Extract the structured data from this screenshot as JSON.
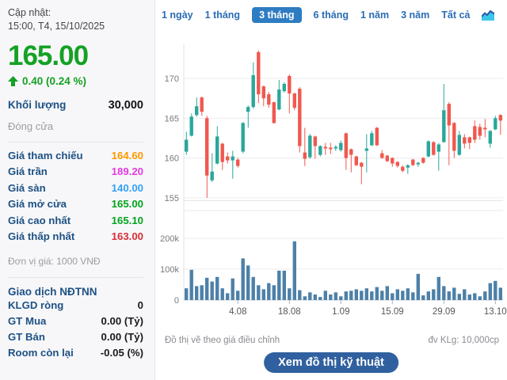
{
  "sidebar": {
    "updated_label": "Cập nhật:",
    "updated_time": "15:00, T4, 15/10/2025",
    "price": "165.00",
    "change": "0.40 (0.24 %)",
    "change_icon": "up-arrow-icon",
    "change_color": "#15a125",
    "volume_label": "Khối lượng",
    "volume_value": "30,000",
    "close_label": "Đóng cửa",
    "rows": [
      {
        "label": "Giá tham chiếu",
        "value": "164.60",
        "color": "#ff9800"
      },
      {
        "label": "Giá trần",
        "value": "189.20",
        "color": "#e43ae0"
      },
      {
        "label": "Giá sàn",
        "value": "140.00",
        "color": "#33a1f5"
      },
      {
        "label": "Giá mở cửa",
        "value": "165.00",
        "color": "#00a41b"
      },
      {
        "label": "Giá cao nhất",
        "value": "165.10",
        "color": "#00a41b"
      },
      {
        "label": "Giá thấp nhất",
        "value": "163.00",
        "color": "#d62f39"
      }
    ],
    "unit_note": "Đơn vị giá: 1000 VNĐ",
    "foreign": {
      "title": "Giao dịch NĐTNN",
      "rows": [
        {
          "label": "KLGD ròng",
          "value": "0"
        },
        {
          "label": "GT Mua",
          "value": "0.00 (Tỷ)"
        },
        {
          "label": "GT Bán",
          "value": "0.00 (Tỷ)"
        },
        {
          "label": "Room còn lại",
          "value": "-0.05 (%)"
        }
      ]
    }
  },
  "tabs": {
    "items": [
      {
        "label": "1 ngày",
        "active": false
      },
      {
        "label": "1 tháng",
        "active": false
      },
      {
        "label": "3 tháng",
        "active": true
      },
      {
        "label": "6 tháng",
        "active": false
      },
      {
        "label": "1 năm",
        "active": false
      },
      {
        "label": "3 năm",
        "active": false
      },
      {
        "label": "Tất cả",
        "active": false
      }
    ],
    "active_bg": "#2e7cc2",
    "chart_icon": "area-chart-icon"
  },
  "footer": {
    "note_left": "Đồ thị vẽ theo giá điều chỉnh",
    "note_right": "đv KLg: 10,000cp",
    "button_label": "Xem đồ thị kỹ thuật"
  },
  "chart_data": [
    {
      "type": "candlestick",
      "title": "Price (1000 VND), 3-month daily candles",
      "price_ticks": [
        170,
        165,
        160,
        155
      ],
      "ylim": [
        154.3,
        174.4
      ],
      "up_color": "#2aa79b",
      "down_color": "#f0584f",
      "x_tick_labels": [
        "4.08",
        "18.08",
        "1.09",
        "15.09",
        "29.09",
        "13.10"
      ],
      "x_tick_indices": [
        10,
        20,
        30,
        40,
        50,
        60
      ],
      "grid": true,
      "candles_ohlc": [
        [
          160.8,
          163.3,
          160.4,
          162.3
        ],
        [
          162.8,
          165.6,
          162.7,
          165.2
        ],
        [
          165.4,
          167.6,
          165.2,
          166.5
        ],
        [
          167.6,
          167.7,
          165.3,
          165.8
        ],
        [
          165.0,
          165.3,
          155.0,
          157.8
        ],
        [
          157.2,
          160.6,
          157.0,
          158.3
        ],
        [
          159.3,
          164.0,
          159.2,
          162.7
        ],
        [
          161.8,
          161.9,
          158.5,
          159.5
        ],
        [
          160.2,
          160.7,
          159.3,
          159.7
        ],
        [
          159.7,
          160.9,
          157.4,
          160.2
        ],
        [
          159.8,
          160.0,
          158.8,
          159.0
        ],
        [
          160.8,
          164.5,
          160.6,
          164.4
        ],
        [
          165.8,
          166.6,
          163.8,
          166.4
        ],
        [
          166.4,
          172.0,
          166.2,
          170.4
        ],
        [
          173.3,
          173.5,
          166.9,
          168.0
        ],
        [
          169.0,
          169.1,
          166.5,
          167.5
        ],
        [
          168.0,
          168.3,
          166.3,
          166.7
        ],
        [
          167.0,
          167.1,
          164.3,
          164.4
        ],
        [
          166.1,
          169.8,
          166.0,
          168.6
        ],
        [
          168.4,
          169.5,
          168.2,
          169.3
        ],
        [
          170.3,
          170.5,
          165.6,
          168.1
        ],
        [
          168.1,
          168.2,
          166.0,
          166.3
        ],
        [
          168.7,
          168.9,
          160.7,
          161.5
        ],
        [
          160.7,
          163.8,
          159.0,
          159.9
        ],
        [
          160.1,
          163.0,
          159.9,
          162.8
        ],
        [
          162.7,
          162.8,
          159.9,
          161.5
        ],
        [
          160.4,
          161.6,
          160.2,
          161.5
        ],
        [
          161.4,
          161.9,
          160.4,
          161.2
        ],
        [
          161.3,
          161.9,
          160.5,
          161.1
        ],
        [
          161.2,
          161.6,
          160.9,
          161.4
        ],
        [
          161.0,
          162.2,
          160.8,
          161.9
        ],
        [
          163.1,
          163.2,
          158.5,
          160.0
        ],
        [
          161.1,
          161.2,
          158.2,
          160.4
        ],
        [
          160.2,
          160.3,
          159.0,
          159.1
        ],
        [
          159.4,
          159.5,
          156.7,
          158.9
        ],
        [
          160.9,
          163.0,
          158.2,
          161.2
        ],
        [
          161.6,
          163.4,
          161.5,
          163.1
        ],
        [
          163.8,
          163.9,
          161.5,
          161.6
        ],
        [
          160.6,
          161.0,
          159.9,
          160.0
        ],
        [
          160.3,
          160.4,
          159.5,
          159.6
        ],
        [
          160.0,
          160.1,
          158.9,
          159.3
        ],
        [
          159.5,
          159.6,
          158.8,
          159.0
        ],
        [
          158.9,
          159.1,
          158.2,
          158.4
        ],
        [
          158.8,
          159.2,
          158.0,
          159.1
        ],
        [
          159.8,
          159.9,
          159.0,
          159.1
        ],
        [
          159.2,
          159.5,
          158.9,
          159.4
        ],
        [
          160.0,
          160.1,
          159.3,
          159.4
        ],
        [
          160.2,
          162.2,
          160.1,
          162.1
        ],
        [
          162.0,
          162.1,
          160.3,
          160.4
        ],
        [
          160.8,
          161.9,
          158.4,
          161.7
        ],
        [
          162.0,
          169.3,
          161.9,
          166.0
        ],
        [
          166.8,
          167.0,
          159.1,
          164.1
        ],
        [
          164.4,
          164.5,
          160.0,
          160.9
        ],
        [
          160.4,
          163.4,
          160.3,
          162.9
        ],
        [
          162.6,
          163.0,
          161.2,
          161.8
        ],
        [
          162.6,
          162.7,
          161.1,
          161.9
        ],
        [
          164.0,
          164.7,
          161.9,
          162.3
        ],
        [
          163.9,
          164.3,
          162.3,
          162.8
        ],
        [
          163.8,
          164.9,
          162.6,
          163.6
        ],
        [
          161.8,
          163.5,
          161.3,
          163.4
        ],
        [
          163.6,
          165.3,
          163.5,
          165.0
        ],
        [
          165.4,
          165.5,
          162.9,
          164.7
        ]
      ]
    },
    {
      "type": "bar",
      "title": "Volume (unit 10,000 shares axis in k)",
      "y_tick_labels": [
        "200k",
        "100k",
        "0"
      ],
      "y_tick_values_k": [
        200,
        100,
        0
      ],
      "bar_color": "#4d80a8",
      "values_k": [
        38,
        98,
        45,
        48,
        72,
        60,
        75,
        38,
        22,
        70,
        30,
        135,
        112,
        75,
        48,
        35,
        55,
        48,
        95,
        95,
        38,
        190,
        32,
        12,
        25,
        18,
        10,
        30,
        18,
        25,
        12,
        28,
        30,
        35,
        30,
        38,
        28,
        42,
        30,
        45,
        22,
        35,
        30,
        38,
        25,
        85,
        15,
        28,
        35,
        75,
        45,
        28,
        40,
        20,
        35,
        18,
        22,
        12,
        28,
        55,
        62,
        40
      ]
    }
  ]
}
